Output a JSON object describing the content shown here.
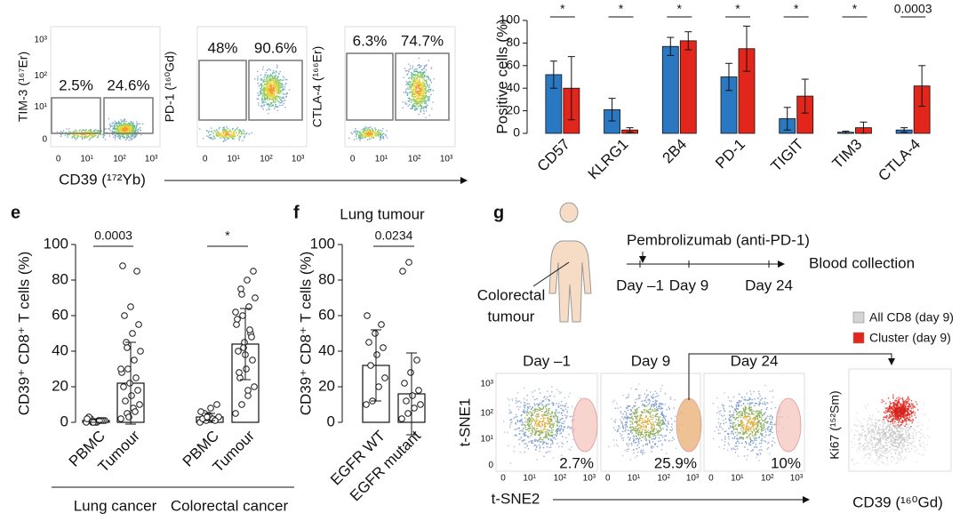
{
  "panel_labels": [
    "e",
    "f",
    "g"
  ],
  "flow": {
    "x_label": "CD39 (¹⁷²Yb)",
    "ticks": [
      "0",
      "10¹",
      "10²",
      "10³"
    ],
    "panels": [
      {
        "y_label": "TIM-3 (¹⁶⁷Er)",
        "gates": [
          "2.5%",
          "24.6%"
        ]
      },
      {
        "y_label": "PD-1 (¹⁶⁰Gd)",
        "gates": [
          "48%",
          "90.6%"
        ]
      },
      {
        "y_label": "CTLA-4 (¹⁶⁶Er)",
        "gates": [
          "6.3%",
          "74.7%"
        ]
      }
    ]
  },
  "chart_data": [
    {
      "type": "bar",
      "ylabel": "Positive cells (%)",
      "categories": [
        "CD57",
        "KLRG1",
        "2B4",
        "PD-1",
        "TIGIT",
        "TIM3",
        "CTLA-4"
      ],
      "series": [
        {
          "color": "#2b78c2",
          "values": [
            52,
            21,
            77,
            50,
            13,
            1,
            3
          ],
          "errors": [
            12,
            10,
            8,
            12,
            10,
            1,
            2
          ]
        },
        {
          "color": "#e3261c",
          "values": [
            40,
            3,
            82,
            75,
            33,
            5,
            42
          ],
          "errors": [
            28,
            2,
            8,
            20,
            15,
            5,
            18
          ]
        }
      ],
      "annotations": [
        "*",
        "*",
        "*",
        "*",
        "*",
        "*",
        "0.0003"
      ],
      "ylim": [
        0,
        100
      ],
      "yticks": [
        0,
        20,
        40,
        60,
        80,
        100
      ]
    },
    {
      "type": "dotbar",
      "ylabel": "CD39⁺ CD8⁺ T cells (%)",
      "categories": [
        "PBMC",
        "Tumour",
        "PBMC",
        "Tumour"
      ],
      "groups": [
        "Lung cancer",
        "Colorectal cancer"
      ],
      "values": [
        1,
        22,
        3,
        44
      ],
      "errors": [
        1,
        23,
        2,
        20
      ],
      "points": [
        [
          0,
          0,
          1,
          1,
          2,
          0,
          1,
          3,
          0,
          1,
          2,
          0,
          1
        ],
        [
          2,
          5,
          8,
          10,
          12,
          15,
          18,
          20,
          22,
          25,
          28,
          30,
          35,
          40,
          45,
          50,
          55,
          60,
          65,
          85,
          88,
          3,
          6,
          30,
          42
        ],
        [
          0,
          1,
          2,
          3,
          5,
          8,
          10,
          2,
          4,
          1,
          6,
          3
        ],
        [
          5,
          10,
          15,
          20,
          25,
          30,
          35,
          40,
          45,
          50,
          55,
          60,
          65,
          70,
          75,
          80,
          85,
          28,
          38,
          48,
          58,
          42,
          52,
          62,
          72,
          18
        ]
      ],
      "annotations": [
        "0.0003",
        "*"
      ],
      "ylim": [
        0,
        100
      ],
      "yticks": [
        0,
        20,
        40,
        60,
        80,
        100
      ]
    },
    {
      "type": "dotbar",
      "title": "Lung tumour",
      "ylabel": "CD39⁺ CD8⁺ T cells (%)",
      "categories": [
        "EGFR WT",
        "EGFR mutant"
      ],
      "values": [
        32,
        16
      ],
      "errors": [
        20,
        23
      ],
      "points": [
        [
          10,
          12,
          20,
          25,
          32,
          38,
          42,
          45,
          50,
          55,
          60
        ],
        [
          2,
          5,
          8,
          10,
          12,
          15,
          18,
          22,
          28,
          35,
          85,
          90
        ]
      ],
      "annotations": [
        "0.0234"
      ],
      "ylim": [
        0,
        100
      ],
      "yticks": [
        0,
        20,
        40,
        60,
        80,
        100
      ]
    }
  ],
  "timeline": {
    "drug": "Pembrolizumab (anti-PD-1)",
    "end": "Blood collection",
    "days": [
      "Day –1",
      "Day 9",
      "Day 24"
    ],
    "tumour": [
      "Colorectal",
      "tumour"
    ]
  },
  "tsne": {
    "y_label": "t-SNE1",
    "x_label": "t-SNE2",
    "ticks": [
      "0",
      "10¹",
      "10²",
      "10³"
    ],
    "panels": [
      {
        "title": "Day –1",
        "percent": "2.7%"
      },
      {
        "title": "Day 9",
        "percent": "25.9%"
      },
      {
        "title": "Day 24",
        "percent": "10%"
      }
    ]
  },
  "ki67": {
    "y_label": "Ki67 (¹⁵²Sm)",
    "x_label": "CD39 (¹⁶⁰Gd)",
    "legend": [
      "All CD8 (day 9)",
      "Cluster (day 9)"
    ]
  }
}
